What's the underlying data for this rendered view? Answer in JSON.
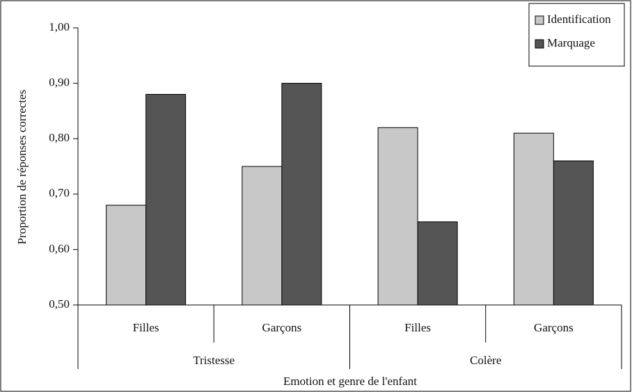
{
  "chart_data": {
    "type": "bar",
    "x_label": "Emotion et genre de l'enfant",
    "y_label": "Proportion de réponses correctes",
    "categories": [
      "Filles",
      "Garçons",
      "Filles",
      "Garçons"
    ],
    "groups": [
      "Tristesse",
      "Colère"
    ],
    "series": [
      {
        "name": "Identification",
        "color": "#c8c8c8",
        "values": [
          0.68,
          0.75,
          0.82,
          0.81
        ]
      },
      {
        "name": "Marquage",
        "color": "#555555",
        "values": [
          0.88,
          0.9,
          0.65,
          0.76
        ]
      }
    ],
    "ylim": [
      0.5,
      1.0
    ],
    "yticks": [
      {
        "value": 0.5,
        "label": "0,50"
      },
      {
        "value": 0.6,
        "label": "0,60"
      },
      {
        "value": 0.7,
        "label": "0,70"
      },
      {
        "value": 0.8,
        "label": "0,80"
      },
      {
        "value": 0.9,
        "label": "0,90"
      },
      {
        "value": 1.0,
        "label": "1,00"
      }
    ],
    "grid": false,
    "legend": "top-right"
  }
}
